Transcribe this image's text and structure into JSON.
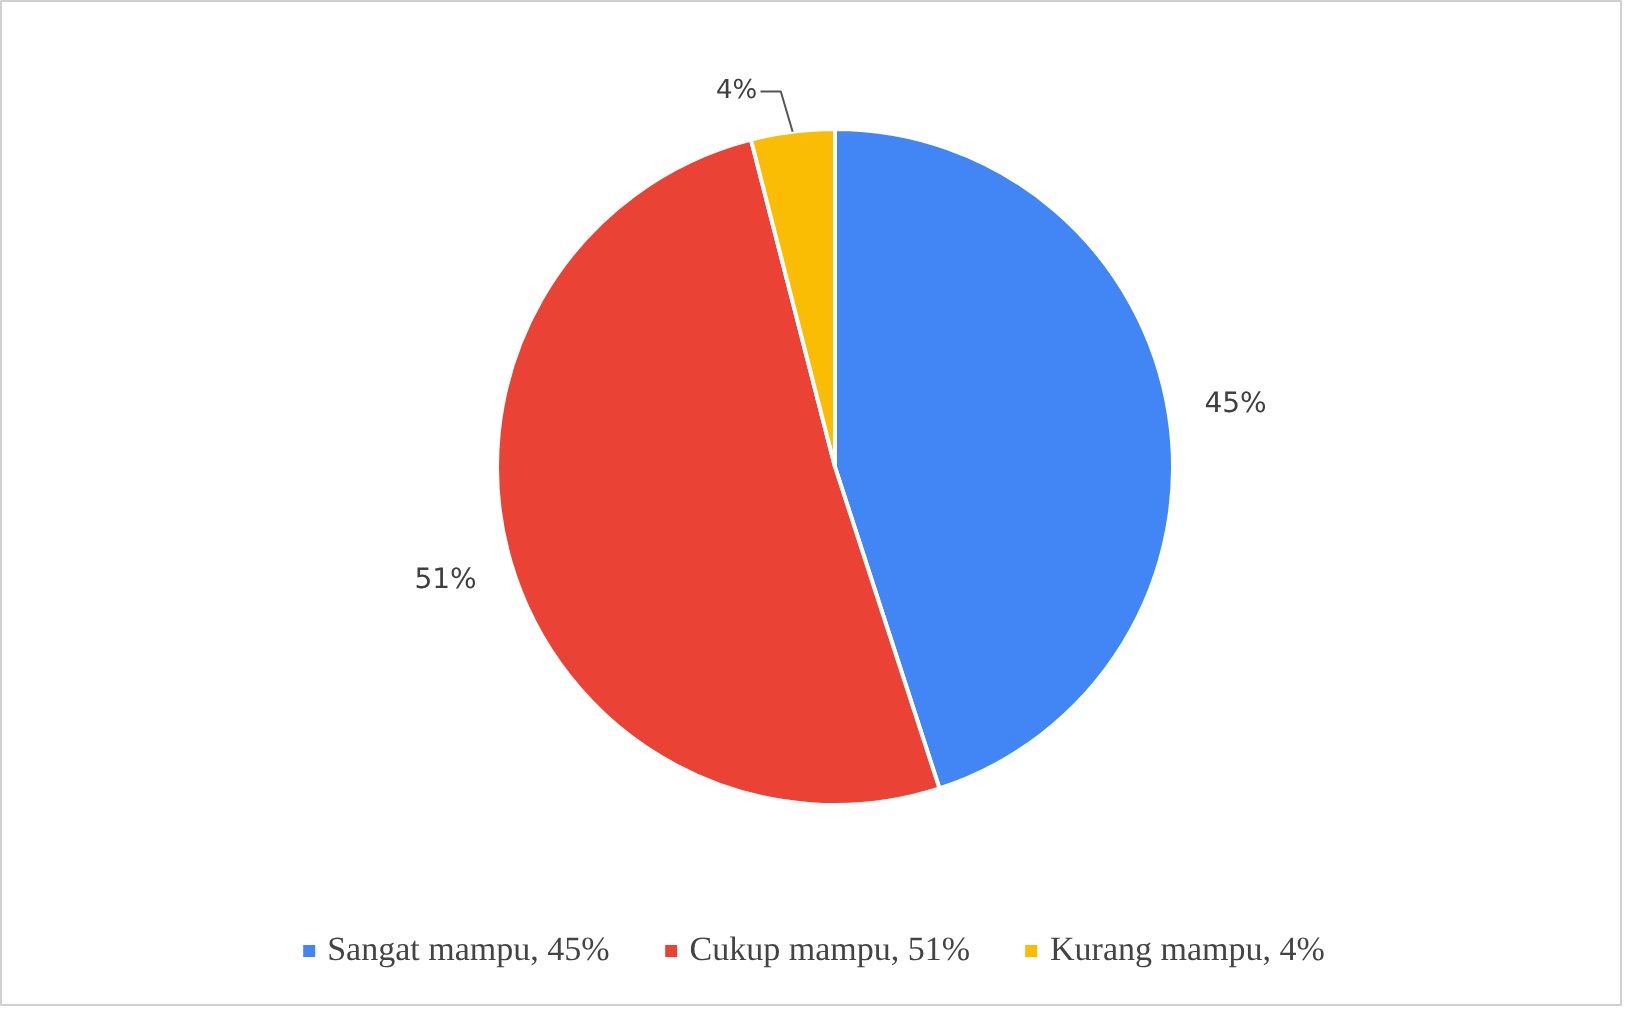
{
  "chart_data": {
    "type": "pie",
    "categories": [
      "Sangat mampu, 45%",
      "Cukup mampu, 51%",
      "Kurang mampu, 4%"
    ],
    "values": [
      45,
      51,
      4
    ],
    "colors": [
      "#4285f4",
      "#ea4335",
      "#fbbc04"
    ],
    "value_labels": [
      "45%",
      "51%",
      "4%"
    ],
    "legend": "bottom"
  }
}
